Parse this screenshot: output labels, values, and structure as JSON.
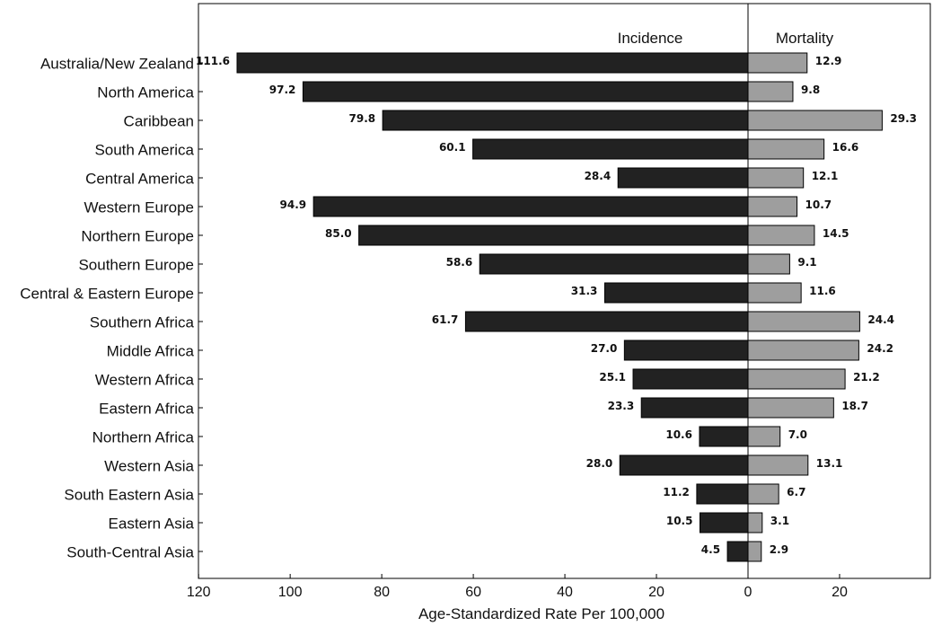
{
  "chart_data": {
    "type": "bar",
    "orientation": "horizontal",
    "layout": "back-to-back",
    "categories": [
      "Australia/New Zealand",
      "North America",
      "Caribbean",
      "South America",
      "Central America",
      "Western Europe",
      "Northern Europe",
      "Southern Europe",
      "Central & Eastern Europe",
      "Southern Africa",
      "Middle Africa",
      "Western Africa",
      "Eastern Africa",
      "Northern Africa",
      "Western Asia",
      "South Eastern Asia",
      "Eastern Asia",
      "South-Central Asia"
    ],
    "series": [
      {
        "name": "Incidence",
        "color": "#222222",
        "direction": "left",
        "values": [
          111.6,
          97.2,
          79.8,
          60.1,
          28.4,
          94.9,
          85.0,
          58.6,
          31.3,
          61.7,
          27.0,
          25.1,
          23.3,
          10.6,
          28.0,
          11.2,
          10.5,
          4.5
        ],
        "value_labels": [
          "111.6",
          "97.2",
          "79.8",
          "60.1",
          "28.4",
          "94.9",
          "85.0",
          "58.6",
          "31.3",
          "61.7",
          "27.0",
          "25.1",
          "23.3",
          "10.6",
          "28.0",
          "11.2",
          "10.5",
          "4.5"
        ]
      },
      {
        "name": "Mortality",
        "color": "#9e9e9e",
        "direction": "right",
        "values": [
          12.9,
          9.8,
          29.3,
          16.6,
          12.1,
          10.7,
          14.5,
          9.1,
          11.6,
          24.4,
          24.2,
          21.2,
          18.7,
          7.0,
          13.1,
          6.7,
          3.1,
          2.9
        ],
        "value_labels": [
          "12.9",
          "9.8",
          "29.3",
          "16.6",
          "12.1",
          "10.7",
          "14.5",
          "9.1",
          "11.6",
          "24.4",
          "24.2",
          "21.2",
          "18.7",
          "7.0",
          "13.1",
          "6.7",
          "3.1",
          "2.9"
        ]
      }
    ],
    "xlim": [
      -120,
      40
    ],
    "xticks": [
      -120,
      -100,
      -80,
      -60,
      -40,
      -20,
      0,
      20
    ],
    "xtick_labels": [
      "120",
      "100",
      "80",
      "60",
      "40",
      "20",
      "0",
      "20"
    ],
    "xlabel": "Age-Standardized Rate Per 100,000",
    "ylabel": "",
    "title": "",
    "grid": false,
    "legend_position": "top, text labels above each side of zero"
  }
}
